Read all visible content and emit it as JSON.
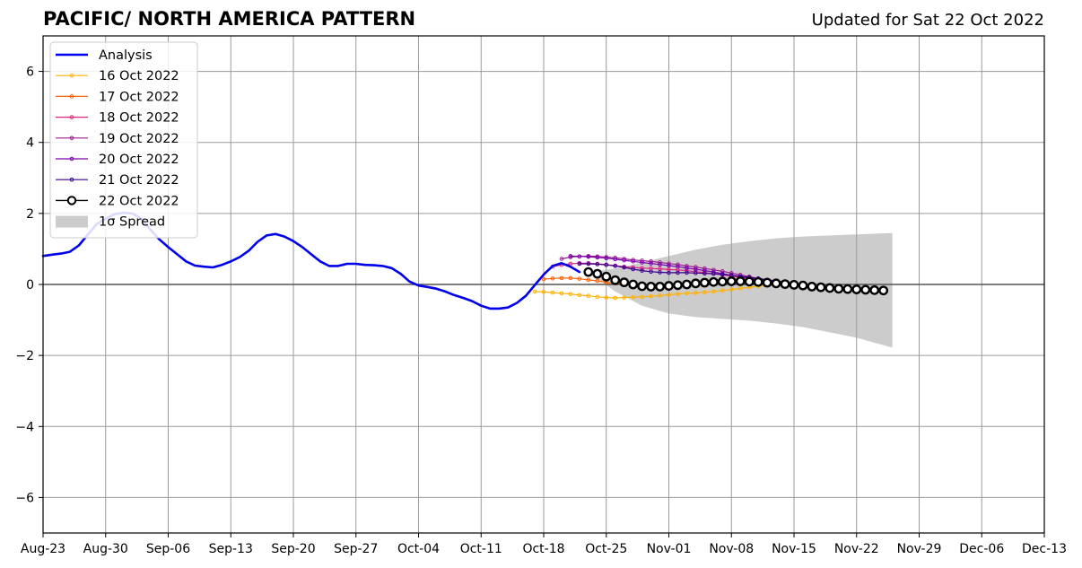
{
  "chart_data": {
    "type": "line",
    "title": "PACIFIC/ NORTH AMERICA PATTERN",
    "subtitle": "Updated for Sat 22 Oct 2022",
    "xlabel": "",
    "ylabel": "",
    "x_start": "2022-08-23",
    "x_end": "2022-12-13",
    "xticks": [
      "Aug-23",
      "Aug-30",
      "Sep-06",
      "Sep-13",
      "Sep-20",
      "Sep-27",
      "Oct-04",
      "Oct-11",
      "Oct-18",
      "Oct-25",
      "Nov-01",
      "Nov-08",
      "Nov-15",
      "Nov-22",
      "Nov-29",
      "Dec-06",
      "Dec-13"
    ],
    "ylim": [
      -7,
      7
    ],
    "yticks": [
      -6,
      -4,
      -2,
      0,
      2,
      4,
      6
    ],
    "grid": true,
    "legend_position": "top-left",
    "analysis": {
      "name": "Analysis",
      "color": "#0000ee",
      "points": [
        [
          "2022-08-23",
          0.8
        ],
        [
          "2022-08-24",
          0.84
        ],
        [
          "2022-08-25",
          0.87
        ],
        [
          "2022-08-26",
          0.92
        ],
        [
          "2022-08-27",
          1.1
        ],
        [
          "2022-08-28",
          1.4
        ],
        [
          "2022-08-29",
          1.7
        ],
        [
          "2022-08-30",
          1.85
        ],
        [
          "2022-08-31",
          1.98
        ],
        [
          "2022-09-01",
          2.02
        ],
        [
          "2022-09-02",
          2.0
        ],
        [
          "2022-09-03",
          1.85
        ],
        [
          "2022-09-04",
          1.55
        ],
        [
          "2022-09-05",
          1.27
        ],
        [
          "2022-09-06",
          1.05
        ],
        [
          "2022-09-07",
          0.85
        ],
        [
          "2022-09-08",
          0.65
        ],
        [
          "2022-09-09",
          0.53
        ],
        [
          "2022-09-10",
          0.5
        ],
        [
          "2022-09-11",
          0.48
        ],
        [
          "2022-09-12",
          0.55
        ],
        [
          "2022-09-13",
          0.65
        ],
        [
          "2022-09-14",
          0.77
        ],
        [
          "2022-09-15",
          0.95
        ],
        [
          "2022-09-16",
          1.2
        ],
        [
          "2022-09-17",
          1.38
        ],
        [
          "2022-09-18",
          1.42
        ],
        [
          "2022-09-19",
          1.35
        ],
        [
          "2022-09-20",
          1.22
        ],
        [
          "2022-09-21",
          1.05
        ],
        [
          "2022-09-22",
          0.85
        ],
        [
          "2022-09-23",
          0.65
        ],
        [
          "2022-09-24",
          0.52
        ],
        [
          "2022-09-25",
          0.52
        ],
        [
          "2022-09-26",
          0.58
        ],
        [
          "2022-09-27",
          0.58
        ],
        [
          "2022-09-28",
          0.55
        ],
        [
          "2022-09-29",
          0.54
        ],
        [
          "2022-09-30",
          0.52
        ],
        [
          "2022-10-01",
          0.46
        ],
        [
          "2022-10-02",
          0.3
        ],
        [
          "2022-10-03",
          0.08
        ],
        [
          "2022-10-04",
          -0.03
        ],
        [
          "2022-10-05",
          -0.07
        ],
        [
          "2022-10-06",
          -0.12
        ],
        [
          "2022-10-07",
          -0.2
        ],
        [
          "2022-10-08",
          -0.3
        ],
        [
          "2022-10-09",
          -0.38
        ],
        [
          "2022-10-10",
          -0.47
        ],
        [
          "2022-10-11",
          -0.6
        ],
        [
          "2022-10-12",
          -0.68
        ],
        [
          "2022-10-13",
          -0.68
        ],
        [
          "2022-10-14",
          -0.65
        ],
        [
          "2022-10-15",
          -0.52
        ],
        [
          "2022-10-16",
          -0.32
        ],
        [
          "2022-10-17",
          -0.02
        ],
        [
          "2022-10-18",
          0.28
        ],
        [
          "2022-10-19",
          0.52
        ],
        [
          "2022-10-20",
          0.6
        ],
        [
          "2022-10-21",
          0.5
        ],
        [
          "2022-10-22",
          0.35
        ]
      ]
    },
    "forecasts": [
      {
        "name": "16 Oct 2022",
        "color": "#ffb000",
        "start": "2022-10-17",
        "values": [
          -0.2,
          -0.21,
          -0.23,
          -0.25,
          -0.27,
          -0.3,
          -0.32,
          -0.35,
          -0.37,
          -0.38,
          -0.37,
          -0.36,
          -0.35,
          -0.33,
          -0.31,
          -0.29,
          -0.27,
          -0.25,
          -0.24,
          -0.22,
          -0.2,
          -0.17,
          -0.14,
          -0.11,
          -0.08,
          -0.05,
          -0.03,
          -0.01,
          0.0,
          0.02
        ]
      },
      {
        "name": "17 Oct 2022",
        "color": "#fe6100",
        "start": "2022-10-18",
        "values": [
          0.15,
          0.17,
          0.18,
          0.18,
          0.16,
          0.13,
          0.1,
          0.06,
          0.03,
          0.0,
          0.0,
          -0.02,
          -0.02,
          -0.01,
          0.0,
          0.02,
          0.04,
          0.06,
          0.07,
          0.08,
          0.08,
          0.08,
          0.07,
          0.06,
          0.05,
          0.04,
          0.03,
          0.03,
          0.02
        ]
      },
      {
        "name": "18 Oct 2022",
        "color": "#dc267f",
        "start": "2022-10-19",
        "values": [
          0.5,
          0.55,
          0.58,
          0.6,
          0.6,
          0.58,
          0.56,
          0.53,
          0.5,
          0.48,
          0.46,
          0.45,
          0.44,
          0.42,
          0.41,
          0.39,
          0.36,
          0.33,
          0.3,
          0.27,
          0.23,
          0.2,
          0.16,
          0.13,
          0.1,
          0.08,
          0.06,
          0.05
        ]
      },
      {
        "name": "19 Oct 2022",
        "color": "#9e1f8d",
        "start": "2022-10-20",
        "values": [
          0.72,
          0.77,
          0.79,
          0.8,
          0.79,
          0.77,
          0.75,
          0.72,
          0.69,
          0.67,
          0.65,
          0.62,
          0.59,
          0.56,
          0.52,
          0.49,
          0.45,
          0.41,
          0.37,
          0.32,
          0.27,
          0.22,
          0.17,
          0.13,
          0.09,
          0.05,
          0.02
        ]
      },
      {
        "name": "20 Oct 2022",
        "color": "#7a00b0",
        "start": "2022-10-21",
        "values": [
          0.8,
          0.79,
          0.78,
          0.76,
          0.74,
          0.71,
          0.68,
          0.65,
          0.62,
          0.59,
          0.56,
          0.53,
          0.5,
          0.46,
          0.43,
          0.39,
          0.35,
          0.3,
          0.26,
          0.22,
          0.18,
          0.14,
          0.1,
          0.06,
          0.03,
          0.0
        ]
      },
      {
        "name": "21 Oct 2022",
        "color": "#3a008e",
        "start": "2022-10-22",
        "values": [
          0.58,
          0.58,
          0.57,
          0.55,
          0.52,
          0.48,
          0.43,
          0.39,
          0.36,
          0.34,
          0.33,
          0.33,
          0.33,
          0.32,
          0.31,
          0.3,
          0.28,
          0.26,
          0.23,
          0.2,
          0.17,
          0.13,
          0.1,
          0.06,
          0.02
        ]
      }
    ],
    "current_forecast": {
      "name": "22 Oct 2022",
      "color": "#000000",
      "start": "2022-10-23",
      "values": [
        0.35,
        0.3,
        0.22,
        0.12,
        0.06,
        0.0,
        -0.05,
        -0.06,
        -0.06,
        -0.04,
        -0.02,
        0.0,
        0.03,
        0.05,
        0.07,
        0.08,
        0.09,
        0.09,
        0.08,
        0.07,
        0.05,
        0.03,
        0.01,
        -0.01,
        -0.03,
        -0.06,
        -0.08,
        -0.1,
        -0.12,
        -0.13,
        -0.14,
        -0.15,
        -0.16,
        -0.17
      ]
    },
    "spread": {
      "name": "1σ Spread",
      "color": "#cccccc",
      "start": "2022-10-23",
      "end": "2022-11-26",
      "upper": [
        [
          0,
          0.35
        ],
        [
          3,
          0.45
        ],
        [
          6,
          0.62
        ],
        [
          9,
          0.8
        ],
        [
          12,
          0.98
        ],
        [
          15,
          1.12
        ],
        [
          18,
          1.22
        ],
        [
          21,
          1.3
        ],
        [
          24,
          1.35
        ],
        [
          27,
          1.38
        ],
        [
          30,
          1.41
        ],
        [
          34,
          1.45
        ]
      ],
      "lower": [
        [
          0,
          0.35
        ],
        [
          3,
          -0.2
        ],
        [
          6,
          -0.6
        ],
        [
          9,
          -0.82
        ],
        [
          12,
          -0.92
        ],
        [
          15,
          -0.97
        ],
        [
          18,
          -1.02
        ],
        [
          21,
          -1.1
        ],
        [
          24,
          -1.2
        ],
        [
          27,
          -1.35
        ],
        [
          30,
          -1.5
        ],
        [
          34,
          -1.78
        ]
      ]
    }
  }
}
